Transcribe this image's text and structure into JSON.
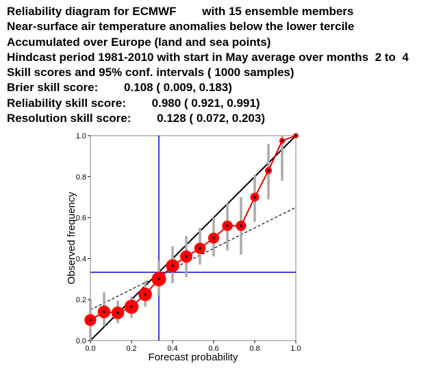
{
  "header": {
    "lines": [
      "Reliability diagram for ECMWF        with 15 ensemble members",
      "Near-surface air temperature anomalies below the lower tercile",
      "Accumulated over Europe (land and sea points)",
      "Hindcast period 1981-2010 with start in May average over months  2 to  4",
      "Skill scores and 95% conf. intervals ( 1000 samples)",
      "Brier skill score:        0.108 ( 0.009, 0.183)",
      "Reliability skill score:        0.980 ( 0.921, 0.991)",
      "Resolution skill score:        0.128 ( 0.072, 0.203)"
    ]
  },
  "colors": {
    "background": "#ffffff",
    "frame": "#808080",
    "diagonal": "#000000",
    "skill_line": "#000000",
    "climatology": "#0000c8",
    "reliability_curve": "#e00000",
    "point_fill": "#ff0000",
    "point_center": "#000000",
    "error_bar": "#aaaaaa"
  },
  "chart_data": {
    "type": "scatter",
    "xlabel": "Forecast probability",
    "ylabel": "Observed frequency",
    "xlim": [
      0,
      1
    ],
    "ylim": [
      0,
      1
    ],
    "x_tick_labels": [
      "0.0",
      "0.2",
      "0.4",
      "0.6",
      "0.8",
      "1.0"
    ],
    "y_tick_labels": [
      "0.0",
      "0.2",
      "0.4",
      "0.6",
      "0.8",
      "1.0"
    ],
    "x_ticks": [
      0,
      0.2,
      0.4,
      0.6,
      0.8,
      1.0
    ],
    "y_ticks": [
      0,
      0.2,
      0.4,
      0.6,
      0.8,
      1.0
    ],
    "grid": false,
    "legend": "none",
    "climatology_frequency": 0.3333,
    "no_skill_line": [
      [
        0,
        0.15
      ],
      [
        1,
        0.65
      ]
    ],
    "perfect_reliability_line": [
      [
        0,
        0
      ],
      [
        1,
        1
      ]
    ],
    "series": [
      {
        "x": [
          0.0,
          0.0667,
          0.1333,
          0.2,
          0.2667,
          0.3333,
          0.4,
          0.4667,
          0.5333,
          0.6,
          0.6667,
          0.7333,
          0.8,
          0.8667,
          0.9333,
          1.0
        ],
        "y": [
          0.1,
          0.14,
          0.135,
          0.165,
          0.225,
          0.3,
          0.365,
          0.41,
          0.45,
          0.5,
          0.56,
          0.56,
          0.7,
          0.83,
          0.975,
          1.0
        ],
        "ci_low": [
          0.0,
          0.07,
          0.085,
          0.11,
          0.165,
          0.22,
          0.28,
          0.31,
          0.37,
          0.41,
          0.44,
          0.42,
          0.58,
          0.69,
          0.78,
          1.0
        ],
        "ci_high": [
          0.2,
          0.235,
          0.195,
          0.215,
          0.29,
          0.39,
          0.46,
          0.51,
          0.55,
          0.6,
          0.67,
          0.7,
          0.81,
          0.96,
          1.0,
          1.0
        ],
        "sample_weight": [
          0.55,
          0.65,
          0.65,
          0.85,
          0.75,
          0.9,
          0.72,
          0.6,
          0.5,
          0.45,
          0.4,
          0.38,
          0.25,
          0.12,
          0.06,
          0.04
        ]
      }
    ]
  }
}
